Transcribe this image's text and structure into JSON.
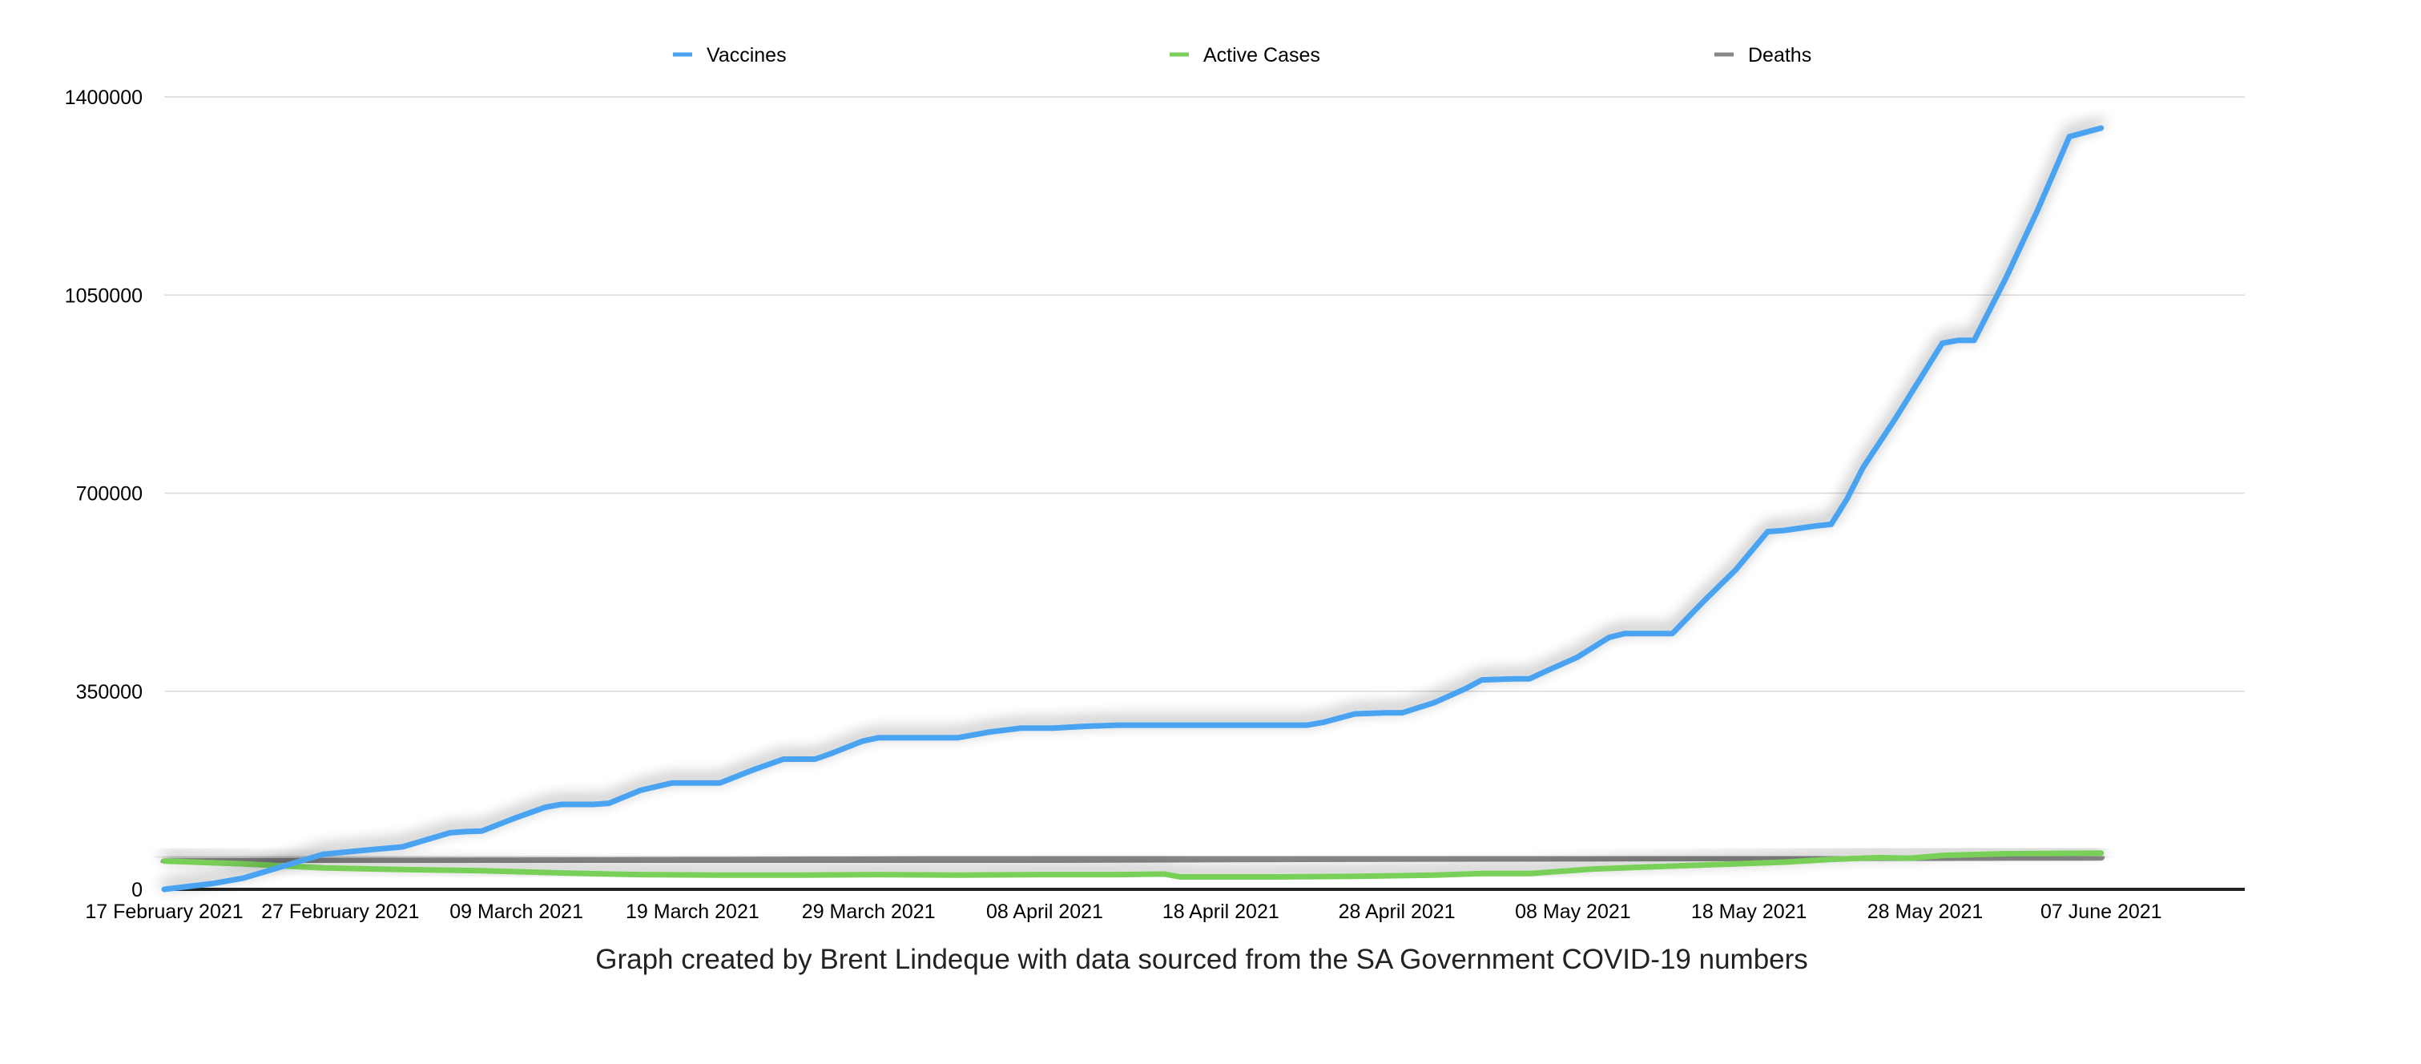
{
  "chart_data": {
    "type": "line",
    "title": "",
    "xlabel": "",
    "ylabel": "",
    "caption": "Graph created by Brent Lindeque with data sourced from the SA Government COVID-19 numbers",
    "ylim": [
      0,
      1400000
    ],
    "yticks": [
      "0",
      "350000",
      "700000",
      "1050000",
      "1400000"
    ],
    "ytick_values": [
      0,
      350000,
      700000,
      1050000,
      1400000
    ],
    "grid": true,
    "legend_placement": "top",
    "x_start_date": "17 February 2021",
    "xticks": [
      {
        "day": 0,
        "label": "17 February 2021"
      },
      {
        "day": 10,
        "label": "27 February 2021"
      },
      {
        "day": 20,
        "label": "09 March 2021"
      },
      {
        "day": 30,
        "label": "19 March 2021"
      },
      {
        "day": 40,
        "label": "29 March 2021"
      },
      {
        "day": 50,
        "label": "08 April 2021"
      },
      {
        "day": 60,
        "label": "18 April 2021"
      },
      {
        "day": 70,
        "label": "28 April 2021"
      },
      {
        "day": 80,
        "label": "08 May 2021"
      },
      {
        "day": 90,
        "label": "18 May 2021"
      },
      {
        "day": 100,
        "label": "28 May 2021"
      },
      {
        "day": 110,
        "label": "07 June 2021"
      }
    ],
    "series": [
      {
        "name": "Vaccines",
        "color": "#4aa3f0",
        "points": [
          [
            0,
            0
          ],
          [
            3,
            10000
          ],
          [
            5,
            20000
          ],
          [
            8,
            45000
          ],
          [
            10,
            62000
          ],
          [
            13,
            70000
          ],
          [
            15,
            75000
          ],
          [
            18,
            100000
          ],
          [
            19,
            102000
          ],
          [
            20,
            103000
          ],
          [
            22,
            125000
          ],
          [
            24,
            145000
          ],
          [
            25,
            150000
          ],
          [
            27,
            150000
          ],
          [
            28,
            152000
          ],
          [
            30,
            175000
          ],
          [
            32,
            188000
          ],
          [
            34,
            188000
          ],
          [
            35,
            188000
          ],
          [
            37,
            210000
          ],
          [
            39,
            230000
          ],
          [
            41,
            230000
          ],
          [
            42,
            240000
          ],
          [
            44,
            262000
          ],
          [
            45,
            268000
          ],
          [
            47,
            268000
          ],
          [
            49,
            268000
          ],
          [
            50,
            268000
          ],
          [
            52,
            278000
          ],
          [
            54,
            285000
          ],
          [
            56,
            285000
          ],
          [
            58,
            288000
          ],
          [
            60,
            290000
          ],
          [
            65,
            290000
          ],
          [
            70,
            290000
          ],
          [
            72,
            290000
          ],
          [
            73,
            295000
          ],
          [
            75,
            310000
          ],
          [
            77,
            312000
          ],
          [
            78,
            312000
          ],
          [
            80,
            330000
          ],
          [
            82,
            355000
          ],
          [
            83,
            370000
          ],
          [
            85,
            372000
          ],
          [
            86,
            372000
          ],
          [
            87,
            385000
          ],
          [
            89,
            410000
          ],
          [
            91,
            445000
          ],
          [
            92,
            452000
          ],
          [
            94,
            452000
          ],
          [
            95,
            452000
          ],
          [
            97,
            510000
          ],
          [
            99,
            565000
          ],
          [
            101,
            632000
          ],
          [
            102,
            634000
          ],
          [
            104,
            642000
          ],
          [
            105,
            645000
          ],
          [
            106,
            690000
          ],
          [
            107,
            745000
          ],
          [
            109,
            830000
          ],
          [
            111,
            920000
          ],
          [
            112,
            965000
          ],
          [
            113,
            970000
          ],
          [
            114,
            970000
          ],
          [
            116,
            1080000
          ],
          [
            118,
            1200000
          ],
          [
            120,
            1330000
          ],
          [
            122,
            1345000
          ]
        ]
      },
      {
        "name": "Active Cases",
        "color": "#79d058",
        "points": [
          [
            0,
            50000
          ],
          [
            5,
            45000
          ],
          [
            10,
            38000
          ],
          [
            15,
            35000
          ],
          [
            20,
            33000
          ],
          [
            25,
            29000
          ],
          [
            28,
            27000
          ],
          [
            30,
            26000
          ],
          [
            35,
            25000
          ],
          [
            40,
            25000
          ],
          [
            45,
            26000
          ],
          [
            50,
            25000
          ],
          [
            55,
            26000
          ],
          [
            60,
            26000
          ],
          [
            63,
            27000
          ],
          [
            64,
            22000
          ],
          [
            70,
            22000
          ],
          [
            75,
            23000
          ],
          [
            80,
            25000
          ],
          [
            83,
            28000
          ],
          [
            86,
            28000
          ],
          [
            90,
            36000
          ],
          [
            93,
            39000
          ],
          [
            96,
            42000
          ],
          [
            99,
            45000
          ],
          [
            102,
            48000
          ],
          [
            105,
            53000
          ],
          [
            108,
            56000
          ],
          [
            110,
            55000
          ],
          [
            112,
            60000
          ],
          [
            116,
            63000
          ],
          [
            122,
            64000
          ]
        ]
      },
      {
        "name": "Deaths",
        "color": "#888888",
        "points": [
          [
            0,
            48500
          ],
          [
            30,
            50500
          ],
          [
            60,
            53500
          ],
          [
            80,
            55000
          ],
          [
            100,
            56000
          ],
          [
            122,
            57000
          ]
        ]
      }
    ]
  }
}
